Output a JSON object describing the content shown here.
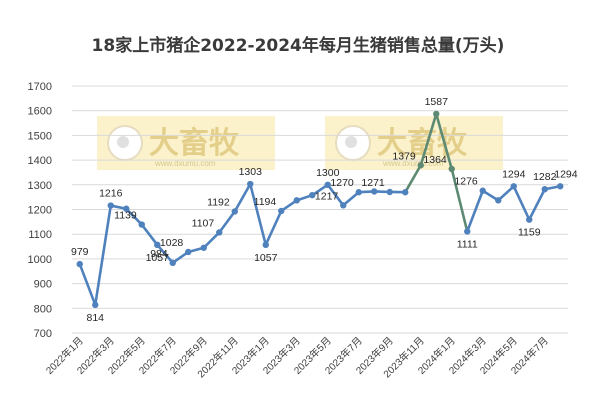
{
  "chart_data": {
    "type": "line",
    "title": "18家上市猪企2022-2024年每月生猪销售总量(万头)",
    "ylim": [
      700,
      1700
    ],
    "yticks": [
      700,
      800,
      900,
      1000,
      1100,
      1200,
      1300,
      1400,
      1500,
      1600,
      1700
    ],
    "grid": true,
    "legend": "none",
    "categories": [
      "2022年1月",
      "2022年2月",
      "2022年3月",
      "2022年4月",
      "2022年5月",
      "2022年6月",
      "2022年7月",
      "2022年8月",
      "2022年9月",
      "2022年10月",
      "2022年11月",
      "2022年12月",
      "2023年1月",
      "2023年2月",
      "2023年3月",
      "2023年4月",
      "2023年5月",
      "2023年6月",
      "2023年7月",
      "2023年8月",
      "2023年9月",
      "2023年10月",
      "2023年11月",
      "2023年12月",
      "2024年1月",
      "2024年2月",
      "2024年3月",
      "2024年4月",
      "2024年5月",
      "2024年6月",
      "2024年7月",
      "2024年8月"
    ],
    "xtick_labels": [
      "2022年1月",
      "2022年3月",
      "2022年5月",
      "2022年7月",
      "2022年9月",
      "2022年11月",
      "2023年1月",
      "2023年3月",
      "2023年5月",
      "2023年7月",
      "2023年9月",
      "2023年11月",
      "2024年1月",
      "2024年3月",
      "2024年5月",
      "2024年7月"
    ],
    "series": [
      {
        "values": [
          979,
          814,
          1216,
          1203,
          1139,
          1057,
          984,
          1028,
          1045,
          1107,
          1192,
          1303,
          1057,
          1194,
          1237,
          1258,
          1300,
          1217,
          1270,
          1273,
          1271,
          1270,
          1379,
          1587,
          1364,
          1111,
          1276,
          1237,
          1294,
          1159,
          1282,
          1294
        ],
        "labels": [
          "979",
          "814",
          "1216",
          "",
          "1139",
          "1057",
          "984",
          "1028",
          "",
          "1107",
          "1192",
          "1303",
          "1057",
          "1194",
          "",
          "",
          "1300",
          "1217",
          "1270",
          "",
          "1271",
          "",
          "1379",
          "1587",
          "1364",
          "1111",
          "1276",
          "",
          "1294",
          "1159",
          "1282",
          "1294"
        ],
        "color": "#4f81bd",
        "highlight_color": "#5e8a73"
      }
    ],
    "watermark": {
      "text": "大畜牧",
      "url": "www.dxumu.com"
    }
  }
}
